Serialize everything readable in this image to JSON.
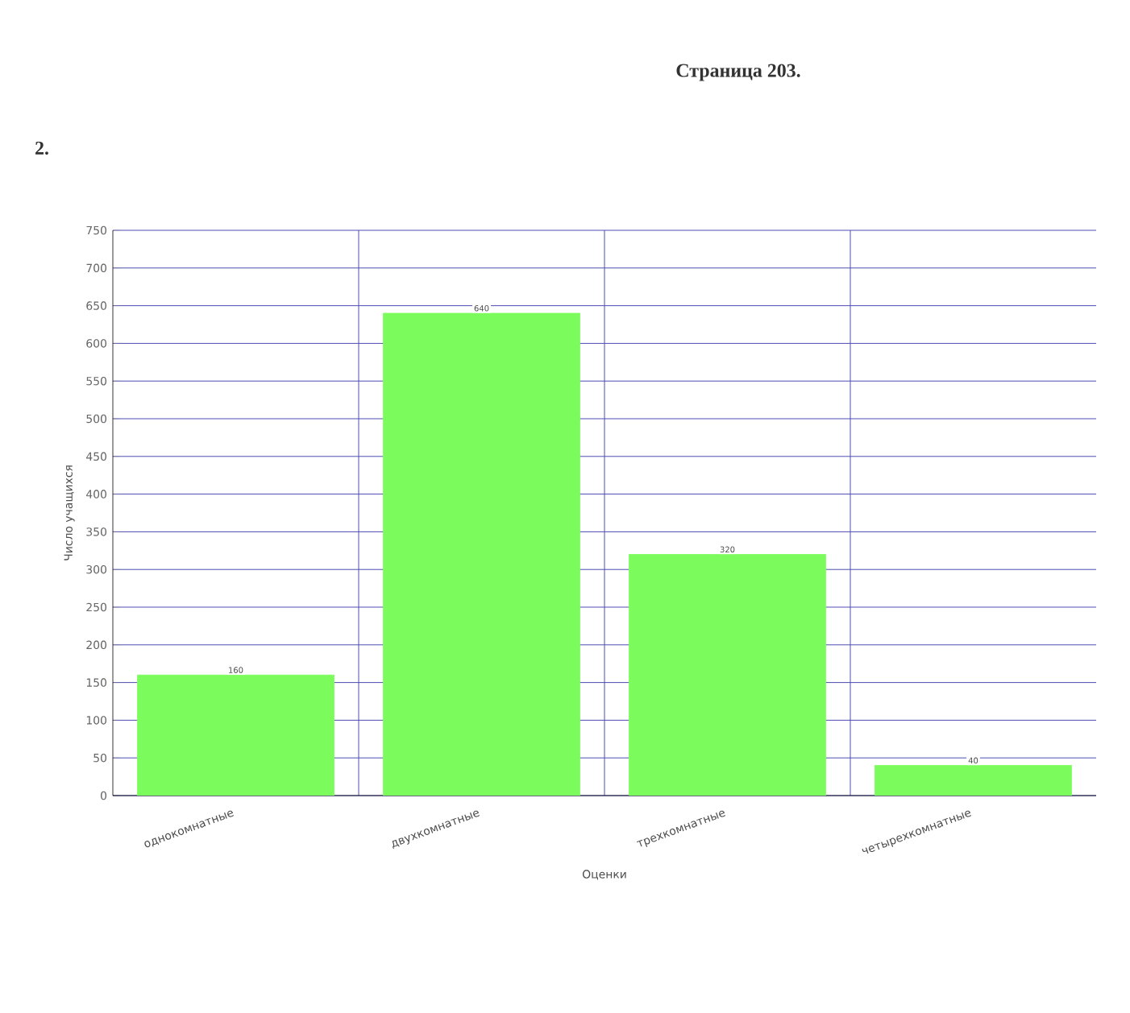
{
  "chart_data": {
    "type": "bar",
    "title": "Страница 203.",
    "annotations": [
      "2."
    ],
    "categories": [
      "однокомнатные",
      "двухкомнатные",
      "трехкомнатные",
      "четырехкомнатные"
    ],
    "values": [
      160,
      640,
      320,
      40
    ],
    "color": "#7cfc5c",
    "xlabel": "Оценки",
    "ylabel": "Число учащихся",
    "ylim": [
      0,
      750
    ],
    "yticks": [
      0,
      50,
      100,
      150,
      200,
      250,
      300,
      350,
      400,
      450,
      500,
      550,
      600,
      650,
      700,
      750
    ],
    "grid": true,
    "data_labels": true
  }
}
